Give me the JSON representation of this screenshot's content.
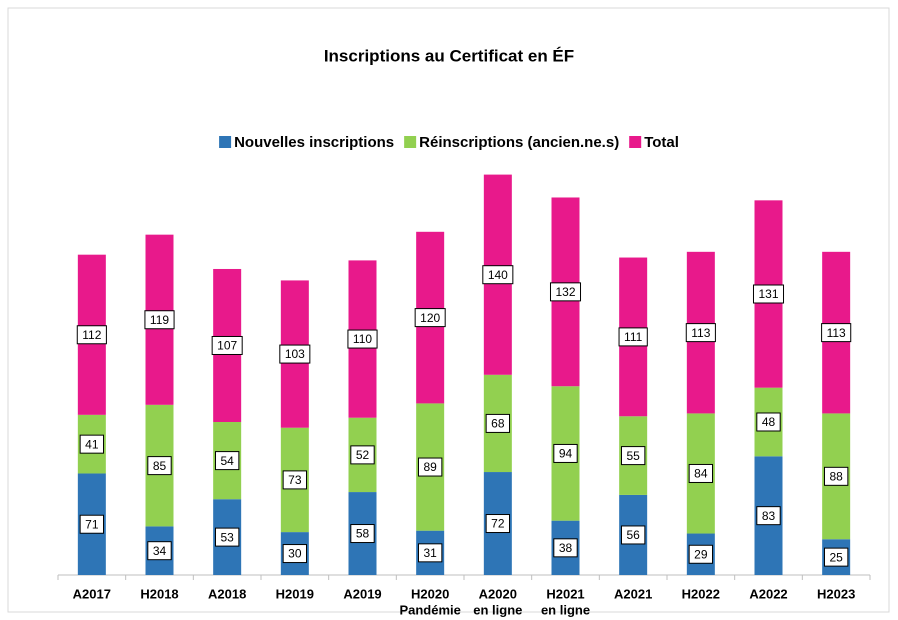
{
  "chart_data": {
    "type": "stacked_bar",
    "title": "Inscriptions au Certificat en ÉF",
    "categories": [
      [
        "A2017"
      ],
      [
        "H2018"
      ],
      [
        "A2018"
      ],
      [
        "H2019"
      ],
      [
        "A2019"
      ],
      [
        "H2020",
        "Pandémie"
      ],
      [
        "A2020",
        "en ligne"
      ],
      [
        "H2021",
        "en ligne"
      ],
      [
        "A2021"
      ],
      [
        "H2022"
      ],
      [
        "A2022"
      ],
      [
        "H2023"
      ]
    ],
    "series": [
      {
        "name": "Nouvelles inscriptions",
        "color": "#2e75b6",
        "values": [
          71,
          34,
          53,
          30,
          58,
          31,
          72,
          38,
          56,
          29,
          83,
          25
        ]
      },
      {
        "name": "Réinscriptions (ancien.ne.s)",
        "color": "#92d050",
        "values": [
          41,
          85,
          54,
          73,
          52,
          89,
          68,
          94,
          55,
          84,
          48,
          88
        ]
      },
      {
        "name": "Total",
        "color": "#e8198b",
        "values": [
          112,
          119,
          107,
          103,
          110,
          120,
          140,
          132,
          111,
          113,
          131,
          113
        ]
      }
    ],
    "ylim": [
      0,
      300
    ],
    "legend": "top"
  }
}
